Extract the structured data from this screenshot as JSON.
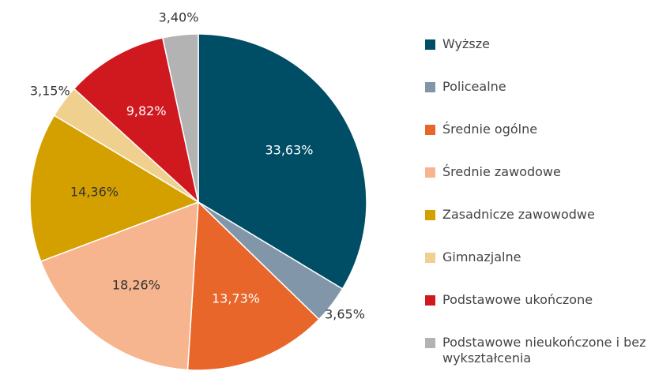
{
  "chart_data": {
    "type": "pie",
    "categories": [
      "Wyższe",
      "Policealne",
      "Średnie ogólne",
      "Średnie zawodowe",
      "Zasadnicze zawowodwe",
      "Gimnazjalne",
      "Podstawowe ukończone",
      "Podstawowe nieukończone i bez wykształcenia"
    ],
    "values": [
      33.63,
      3.65,
      13.73,
      18.26,
      14.36,
      3.15,
      9.82,
      3.4
    ],
    "value_labels": [
      "33,63%",
      "3,65%",
      "13,73%",
      "18,26%",
      "14,36%",
      "3,15%",
      "9,82%",
      "3,40%"
    ],
    "colors": [
      "#004d66",
      "#8196a8",
      "#e8662a",
      "#f6b58e",
      "#d4a000",
      "#f0d08e",
      "#d0181f",
      "#b3b3b3"
    ],
    "legend": "right"
  }
}
